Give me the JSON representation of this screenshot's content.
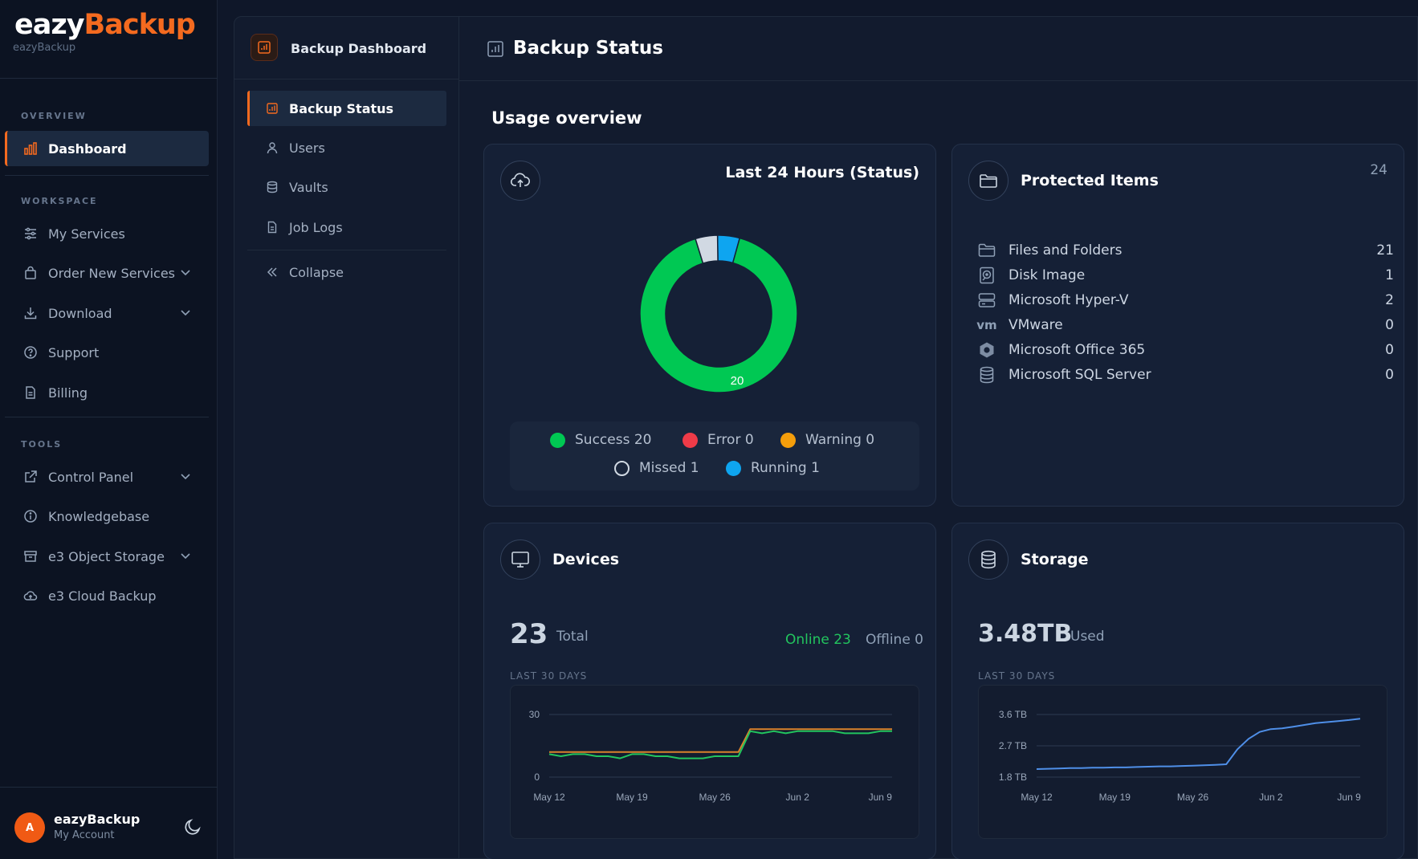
{
  "brand": {
    "name_part1": "eazy",
    "name_part2": "Backup",
    "subtitle": "eazyBackup"
  },
  "sidebar": {
    "sections": {
      "overview": "OVERVIEW",
      "workspace": "WORKSPACE",
      "tools": "TOOLS"
    },
    "items": {
      "dashboard": "Dashboard",
      "my_services": "My Services",
      "order_new_services": "Order New Services",
      "download": "Download",
      "support": "Support",
      "billing": "Billing",
      "control_panel": "Control Panel",
      "knowledgebase": "Knowledgebase",
      "e3_object_storage": "e3 Object Storage",
      "e3_cloud_backup": "e3 Cloud Backup"
    }
  },
  "account": {
    "initial": "A",
    "name": "eazyBackup",
    "sub": "My Account"
  },
  "subnav": {
    "title": "Backup Dashboard",
    "items": {
      "backup_status": "Backup Status",
      "users": "Users",
      "vaults": "Vaults",
      "job_logs": "Job Logs",
      "collapse": "Collapse"
    }
  },
  "main": {
    "title": "Backup Status",
    "usage_title": "Usage overview"
  },
  "status_card": {
    "title": "Last 24 Hours (Status)",
    "donut_label": "20",
    "legend": {
      "success": "Success 20",
      "error": "Error 0",
      "warning": "Warning 0",
      "missed": "Missed 1",
      "running": "Running 1"
    }
  },
  "protected": {
    "title": "Protected Items",
    "total": "24",
    "items": [
      {
        "label": "Files and Folders",
        "value": "21",
        "icon": "folder-icon"
      },
      {
        "label": "Disk Image",
        "value": "1",
        "icon": "disk-image-icon"
      },
      {
        "label": "Microsoft Hyper-V",
        "value": "2",
        "icon": "server-icon"
      },
      {
        "label": "VMware",
        "value": "0",
        "icon": "vmware-icon"
      },
      {
        "label": "Microsoft Office 365",
        "value": "0",
        "icon": "office-icon"
      },
      {
        "label": "Microsoft SQL Server",
        "value": "0",
        "icon": "database-icon"
      }
    ]
  },
  "devices": {
    "title": "Devices",
    "total": "23",
    "total_label": "Total",
    "online": "Online 23",
    "offline": "Offline 0",
    "range_label": "LAST 30 DAYS"
  },
  "storage": {
    "title": "Storage",
    "used": "3.48TB",
    "used_label": "Used",
    "range_label": "LAST 30 DAYS"
  },
  "colors": {
    "accent": "#f46a1f",
    "success": "#00c853",
    "error": "#ef3b48",
    "warning": "#f59e0b",
    "running": "#0ea5f0",
    "missed": "#d1d9e3"
  },
  "chart_data": [
    {
      "type": "pie",
      "title": "Last 24 Hours (Status)",
      "categories": [
        "Success",
        "Error",
        "Warning",
        "Missed",
        "Running"
      ],
      "values": [
        20,
        0,
        0,
        1,
        1
      ]
    },
    {
      "type": "line",
      "x": [
        "May 12",
        "May 13",
        "May 14",
        "May 15",
        "May 16",
        "May 17",
        "May 18",
        "May 19",
        "May 20",
        "May 21",
        "May 22",
        "May 23",
        "May 24",
        "May 25",
        "May 26",
        "May 27",
        "May 28",
        "May 29",
        "May 30",
        "May 31",
        "Jun 1",
        "Jun 2",
        "Jun 3",
        "Jun 4",
        "Jun 5",
        "Jun 6",
        "Jun 7",
        "Jun 8",
        "Jun 9",
        "Jun 10"
      ],
      "xticks": [
        "May 12",
        "May 19",
        "May 26",
        "Jun 2",
        "Jun 9"
      ],
      "yticks": [
        "30",
        "0"
      ],
      "ylim": [
        0,
        30
      ],
      "series": [
        {
          "values": [
            12,
            12,
            12,
            12,
            12,
            12,
            12,
            12,
            12,
            12,
            12,
            12,
            12,
            12,
            12,
            12,
            12,
            23,
            23,
            23,
            23,
            23,
            23,
            23,
            23,
            23,
            23,
            23,
            23,
            23
          ]
        },
        {
          "values": [
            11,
            10,
            11,
            11,
            10,
            10,
            9,
            11,
            11,
            10,
            10,
            9,
            9,
            9,
            10,
            10,
            10,
            22,
            21,
            22,
            21,
            22,
            22,
            22,
            22,
            21,
            21,
            21,
            22,
            22
          ]
        }
      ]
    },
    {
      "type": "line",
      "x": [
        "May 12",
        "May 13",
        "May 14",
        "May 15",
        "May 16",
        "May 17",
        "May 18",
        "May 19",
        "May 20",
        "May 21",
        "May 22",
        "May 23",
        "May 24",
        "May 25",
        "May 26",
        "May 27",
        "May 28",
        "May 29",
        "May 30",
        "May 31",
        "Jun 1",
        "Jun 2",
        "Jun 3",
        "Jun 4",
        "Jun 5",
        "Jun 6",
        "Jun 7",
        "Jun 8",
        "Jun 9",
        "Jun 10"
      ],
      "xticks": [
        "May 12",
        "May 19",
        "May 26",
        "Jun 2",
        "Jun 9"
      ],
      "yticks": [
        "3.6 TB",
        "2.7 TB",
        "1.8 TB"
      ],
      "ylim": [
        1.8,
        3.6
      ],
      "series": [
        {
          "values": [
            2.03,
            2.04,
            2.05,
            2.06,
            2.06,
            2.07,
            2.07,
            2.08,
            2.08,
            2.09,
            2.1,
            2.11,
            2.11,
            2.12,
            2.13,
            2.14,
            2.15,
            2.17,
            2.6,
            2.9,
            3.1,
            3.18,
            3.2,
            3.25,
            3.3,
            3.35,
            3.38,
            3.41,
            3.44,
            3.48
          ]
        }
      ]
    }
  ]
}
